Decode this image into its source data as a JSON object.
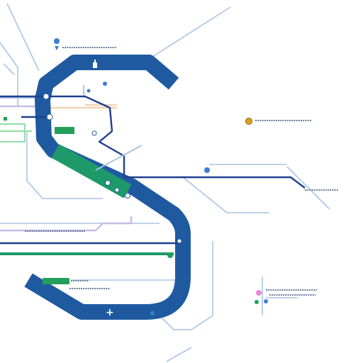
{
  "map": {
    "colors": {
      "background": "#ffffff",
      "trunk_line": "#1f5aa0",
      "green_line": "#1e9a6a",
      "navy_line": "#1f3f8f",
      "light_line": "#a9c4e6",
      "lavender_line": "#c6bde8",
      "peach_line": "#f2d4b6",
      "green_light_line": "#8fe0a5",
      "gold_marker": "#d9a21b",
      "pink_marker": "#e58ad6",
      "blue_marker": "#3b7fd1",
      "green_marker": "#22a05a",
      "placeholder_text": "#6b7c96"
    },
    "icons": [
      "location-pin-icon",
      "plus-icon"
    ],
    "labels": []
  }
}
